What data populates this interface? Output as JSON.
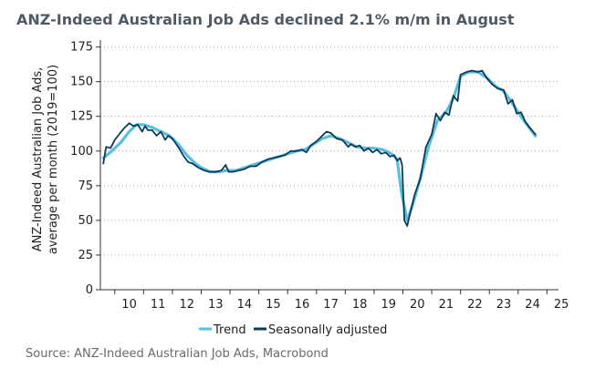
{
  "title": "ANZ-Indeed Australian Job Ads declined 2.1% m/m in August",
  "source": "Source: ANZ-Indeed Australian Job Ads, Macrobond",
  "chart_data": {
    "type": "line",
    "title": "ANZ-Indeed Australian Job Ads declined 2.1% m/m in August",
    "xlabel": "",
    "ylabel_lines": [
      "ANZ-Indeed Australian Job Ads,",
      "average per month (2019=100)"
    ],
    "ylim": [
      0,
      180
    ],
    "xlim": [
      2009.5,
      2025.4
    ],
    "yticks": [
      0,
      25,
      50,
      75,
      100,
      125,
      150,
      175
    ],
    "xtick_labels": [
      "10",
      "11",
      "12",
      "13",
      "14",
      "15",
      "16",
      "17",
      "18",
      "19",
      "20",
      "21",
      "22",
      "23",
      "24",
      "25"
    ],
    "grid": "horizontal dotted",
    "legend_position": "bottom-center",
    "colors": {
      "trend": "#5bbfdc",
      "seasonally_adjusted": "#0e3a5a"
    },
    "series": [
      {
        "name": "Trend",
        "x": [
          2009.6,
          2009.9,
          2010.2,
          2010.5,
          2010.75,
          2011.0,
          2011.3,
          2011.6,
          2011.9,
          2012.2,
          2012.5,
          2012.8,
          2013.0,
          2013.3,
          2013.6,
          2013.9,
          2014.2,
          2014.5,
          2014.8,
          2015.1,
          2015.4,
          2015.7,
          2016.0,
          2016.3,
          2016.6,
          2016.9,
          2017.2,
          2017.5,
          2017.8,
          2018.1,
          2018.4,
          2018.7,
          2019.0,
          2019.3,
          2019.6,
          2019.8,
          2019.95,
          2020.15,
          2020.35,
          2020.6,
          2020.9,
          2021.2,
          2021.5,
          2021.75,
          2022.0,
          2022.3,
          2022.6,
          2022.9,
          2023.2,
          2023.5,
          2023.75,
          2024.0,
          2024.2,
          2024.45,
          2024.6
        ],
        "values": [
          95,
          100,
          106,
          114,
          119,
          119,
          117,
          114,
          111,
          105,
          97,
          91,
          88,
          85,
          85,
          86,
          86,
          88,
          90,
          92,
          94,
          96,
          98,
          100,
          101,
          105,
          109,
          111,
          109,
          106,
          103,
          102,
          102,
          101,
          98,
          94,
          70,
          50,
          62,
          80,
          104,
          122,
          128,
          138,
          154,
          157,
          157,
          153,
          147,
          143,
          136,
          128,
          122,
          115,
          111
        ]
      },
      {
        "name": "Seasonally adjusted",
        "x": [
          2009.6,
          2009.7,
          2009.85,
          2010.0,
          2010.15,
          2010.3,
          2010.5,
          2010.65,
          2010.8,
          2010.95,
          2011.05,
          2011.15,
          2011.3,
          2011.45,
          2011.6,
          2011.75,
          2011.85,
          2012.0,
          2012.2,
          2012.4,
          2012.55,
          2012.7,
          2012.9,
          2013.1,
          2013.3,
          2013.5,
          2013.7,
          2013.85,
          2013.95,
          2014.1,
          2014.3,
          2014.5,
          2014.7,
          2014.9,
          2015.1,
          2015.3,
          2015.5,
          2015.7,
          2015.9,
          2016.1,
          2016.3,
          2016.5,
          2016.65,
          2016.8,
          2017.0,
          2017.2,
          2017.35,
          2017.5,
          2017.7,
          2017.9,
          2018.1,
          2018.2,
          2018.35,
          2018.5,
          2018.65,
          2018.8,
          2018.95,
          2019.1,
          2019.25,
          2019.4,
          2019.55,
          2019.7,
          2019.8,
          2019.9,
          2019.97,
          2020.05,
          2020.15,
          2020.25,
          2020.4,
          2020.6,
          2020.8,
          2021.0,
          2021.15,
          2021.3,
          2021.45,
          2021.6,
          2021.75,
          2021.9,
          2022.0,
          2022.2,
          2022.4,
          2022.6,
          2022.75,
          2022.9,
          2023.1,
          2023.3,
          2023.5,
          2023.65,
          2023.8,
          2023.95,
          2024.1,
          2024.25,
          2024.4,
          2024.6
        ],
        "values": [
          91,
          103,
          102,
          108,
          112,
          116,
          120,
          118,
          119,
          114,
          118,
          115,
          115,
          111,
          114,
          108,
          111,
          109,
          103,
          96,
          92,
          91,
          88,
          86,
          85,
          85,
          86,
          90,
          85,
          85,
          86,
          87,
          89,
          89,
          92,
          94,
          95,
          96,
          97,
          100,
          100,
          101,
          99,
          104,
          107,
          111,
          114,
          113,
          109,
          108,
          103,
          105,
          103,
          104,
          100,
          102,
          99,
          101,
          98,
          99,
          96,
          97,
          93,
          95,
          90,
          50,
          46,
          55,
          68,
          80,
          103,
          112,
          127,
          122,
          128,
          126,
          140,
          136,
          155,
          157,
          158,
          157,
          158,
          153,
          148,
          145,
          144,
          134,
          137,
          127,
          128,
          121,
          117,
          112
        ]
      }
    ]
  }
}
